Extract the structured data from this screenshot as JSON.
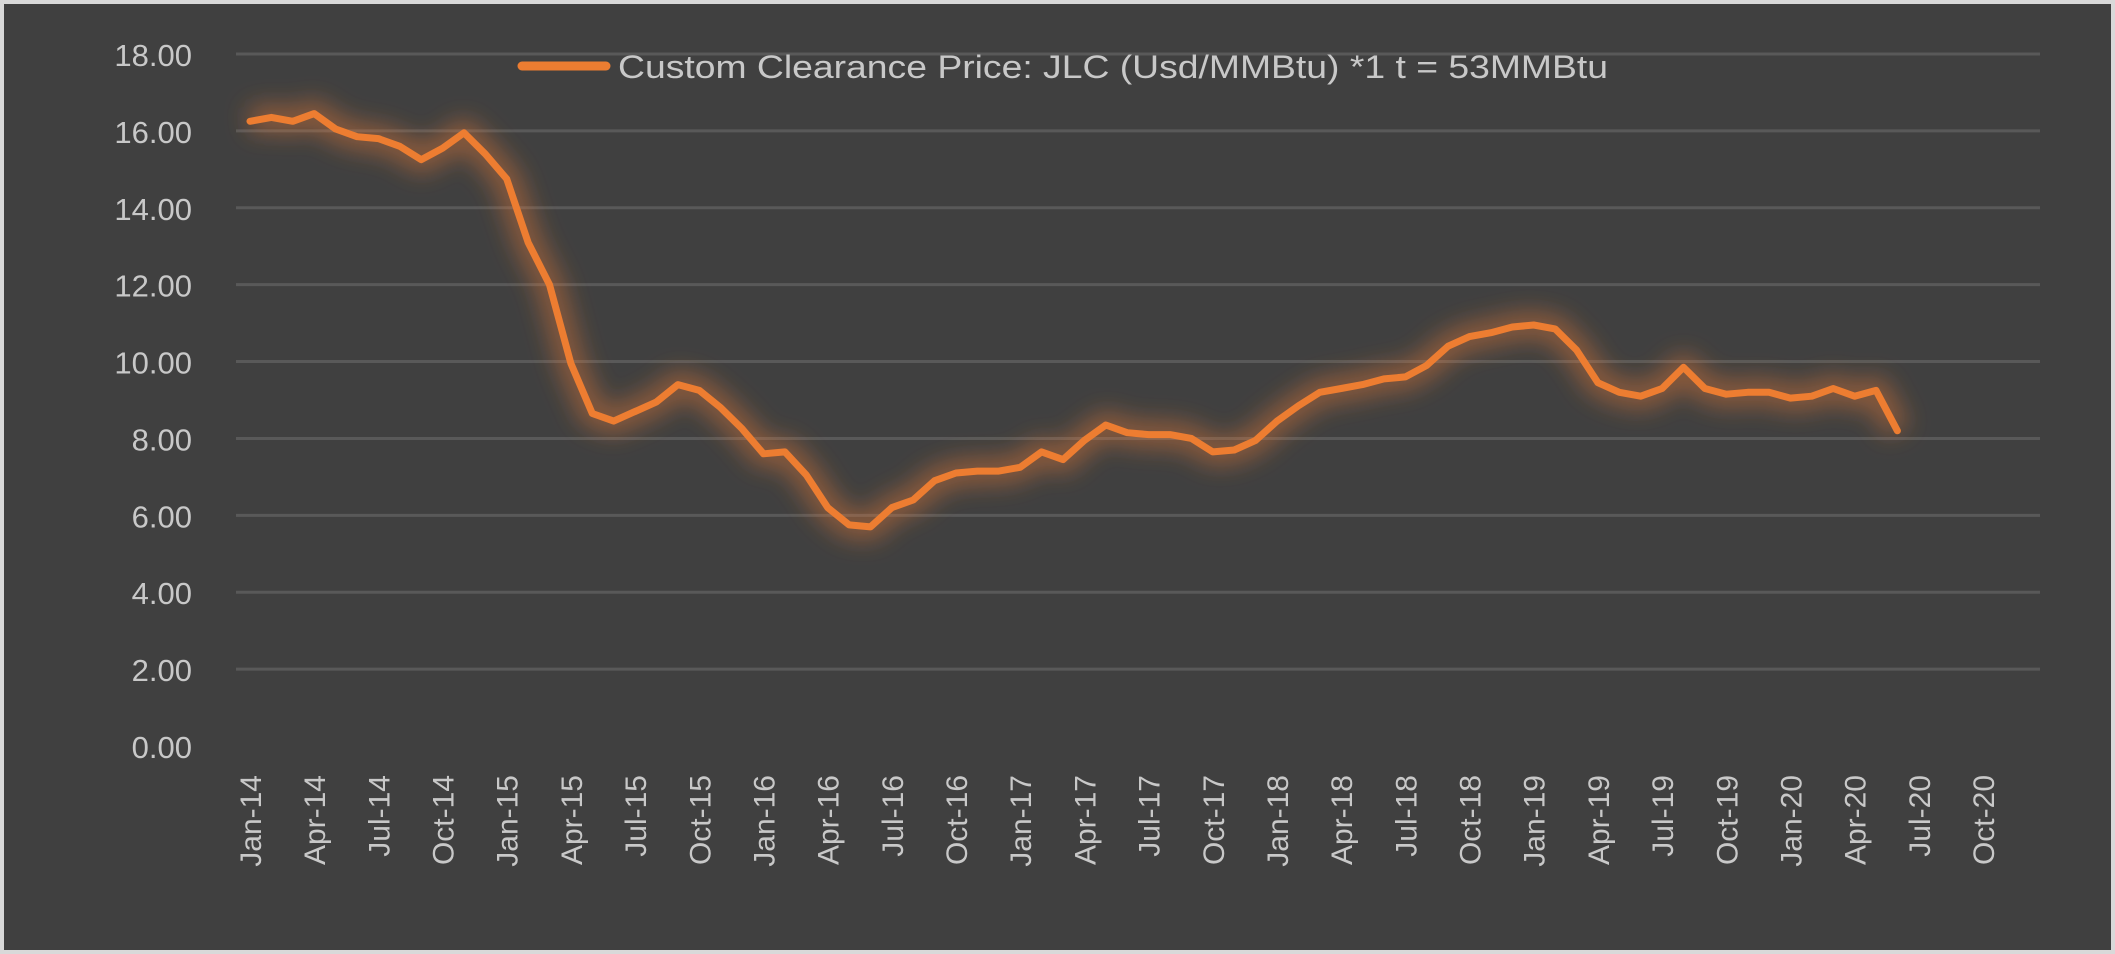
{
  "chart_data": {
    "type": "line",
    "title": "",
    "xlabel": "",
    "ylabel": "",
    "ylim": [
      0,
      18
    ],
    "y_ticks": [
      "0.00",
      "2.00",
      "4.00",
      "6.00",
      "8.00",
      "10.00",
      "12.00",
      "14.00",
      "16.00",
      "18.00"
    ],
    "x_tick_labels": [
      "Jan-14",
      "Apr-14",
      "Jul-14",
      "Oct-14",
      "Jan-15",
      "Apr-15",
      "Jul-15",
      "Oct-15",
      "Jan-16",
      "Apr-16",
      "Jul-16",
      "Oct-16",
      "Jan-17",
      "Apr-17",
      "Jul-17",
      "Oct-17",
      "Jan-18",
      "Apr-18",
      "Jul-18",
      "Oct-18",
      "Jan-19",
      "Apr-19",
      "Jul-19",
      "Oct-19",
      "Jan-20",
      "Apr-20",
      "Jul-20",
      "Oct-20"
    ],
    "x_start": "Jan-14",
    "x_interval": "monthly",
    "grid": "horizontal",
    "legend_position": "top",
    "series": [
      {
        "name": "Custom Clearance Price: JLC (Usd/MMBtu) *1 t = 53MMBtu",
        "color": "#ed7d31",
        "values": [
          16.25,
          16.35,
          16.25,
          16.45,
          16.05,
          15.85,
          15.8,
          15.6,
          15.25,
          15.55,
          15.95,
          15.4,
          14.75,
          13.1,
          12.0,
          9.95,
          8.65,
          8.45,
          8.7,
          8.95,
          9.4,
          9.25,
          8.8,
          8.25,
          7.6,
          7.65,
          7.05,
          6.2,
          5.75,
          5.7,
          6.2,
          6.4,
          6.9,
          7.1,
          7.15,
          7.15,
          7.25,
          7.65,
          7.45,
          7.95,
          8.35,
          8.15,
          8.1,
          8.1,
          8.0,
          7.65,
          7.7,
          7.95,
          8.45,
          8.85,
          9.2,
          9.3,
          9.4,
          9.55,
          9.6,
          9.9,
          10.4,
          10.65,
          10.75,
          10.9,
          10.95,
          10.85,
          10.3,
          9.45,
          9.2,
          9.1,
          9.3,
          9.85,
          9.3,
          9.15,
          9.2,
          9.2,
          9.05,
          9.1,
          9.3,
          9.1,
          9.25,
          8.2
        ]
      }
    ]
  }
}
